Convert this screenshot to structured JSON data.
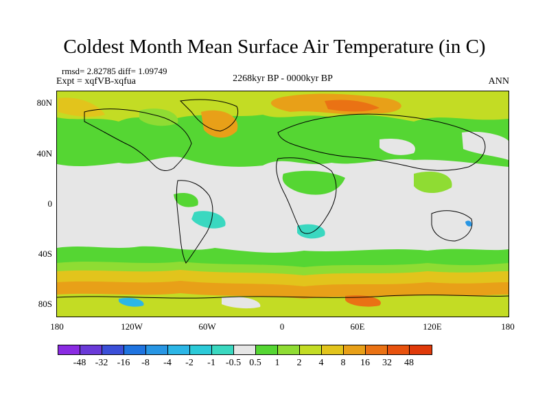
{
  "title": "Coldest Month Mean Surface Air Temperature (in C)",
  "stats": "rmsd= 2.82785 diff= 1.09749",
  "expt": "Expt = xqfVB-xqfua",
  "period": "2268kyr BP - 0000kyr BP",
  "season": "ANN",
  "lat_labels": [
    "80N",
    "40N",
    "0",
    "40S",
    "80S"
  ],
  "lon_labels": [
    "180",
    "120W",
    "60W",
    "0",
    "60E",
    "120E",
    "180"
  ],
  "colorbar": {
    "labels": [
      "-48",
      "-32",
      "-16",
      "-8",
      "-4",
      "-2",
      "-1",
      "-0.5",
      "0.5",
      "1",
      "2",
      "4",
      "8",
      "16",
      "32",
      "48"
    ],
    "colors": [
      "#8a2be2",
      "#6a3ad8",
      "#3b4fd8",
      "#1f74e0",
      "#2896e4",
      "#2cb6e6",
      "#2ccad8",
      "#3ad8c0",
      "#e6e6e6",
      "#55d633",
      "#8fdc33",
      "#c3dc24",
      "#e2c41c",
      "#e8a018",
      "#ea7214",
      "#e8520e",
      "#e03a0a"
    ]
  },
  "colors": {
    "land_outline": "#000000",
    "near_zero": "#e6e6e6",
    "green": "#55d633",
    "light_green": "#8fdc33",
    "yellow_green": "#c3dc24",
    "yellow": "#e2c41c",
    "orange": "#e8a018",
    "red_orange": "#ea7214",
    "cyan": "#3ad8c0",
    "blue": "#2896e4"
  }
}
